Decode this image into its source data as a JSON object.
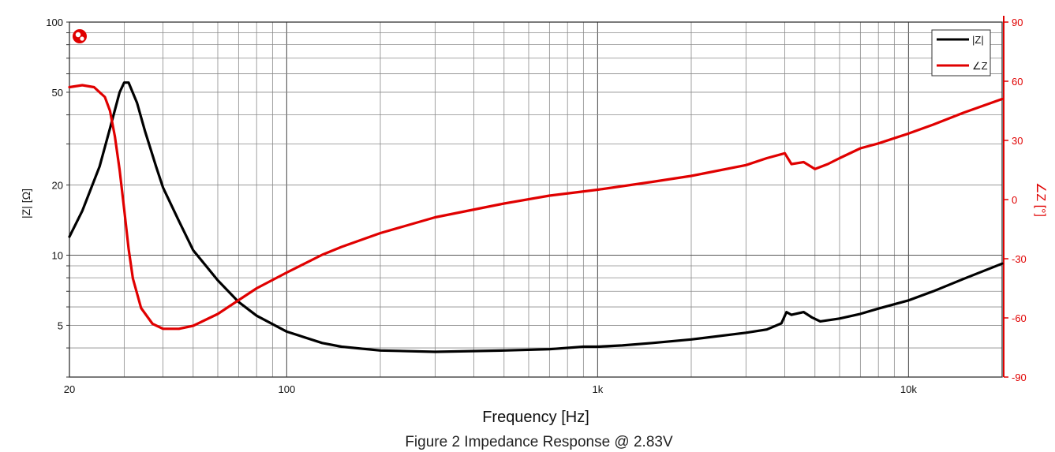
{
  "chart_data": {
    "type": "line",
    "caption": "Figure 2 Impedance Response @ 2.83V",
    "xlabel": "Frequency [Hz]",
    "ylabel_left": "|Z| [Ω]",
    "ylabel_right": "∠Z [°]",
    "x_scale": "log",
    "xlim": [
      20,
      20000
    ],
    "y_left_scale": "log",
    "y_left_lim": [
      3,
      100
    ],
    "y_right_lim": [
      -90,
      90
    ],
    "x_ticks": [
      {
        "value": 20,
        "label": "20"
      },
      {
        "value": 100,
        "label": "100"
      },
      {
        "value": 1000,
        "label": "1k"
      },
      {
        "value": 10000,
        "label": "10k"
      }
    ],
    "y_left_ticks": [
      {
        "value": 5,
        "label": "5"
      },
      {
        "value": 10,
        "label": "10"
      },
      {
        "value": 20,
        "label": "20"
      },
      {
        "value": 50,
        "label": "50"
      },
      {
        "value": 100,
        "label": "100"
      }
    ],
    "y_right_ticks": [
      {
        "value": -90,
        "label": "-90"
      },
      {
        "value": -60,
        "label": "-60"
      },
      {
        "value": -30,
        "label": "-30"
      },
      {
        "value": 0,
        "label": "0"
      },
      {
        "value": 30,
        "label": "30"
      },
      {
        "value": 60,
        "label": "60"
      },
      {
        "value": 90,
        "label": "90"
      }
    ],
    "grid": true,
    "legend": {
      "placement": "top-right"
    },
    "series": [
      {
        "name": "|Z|",
        "axis": "left",
        "color": "#000000",
        "points": [
          [
            20,
            12
          ],
          [
            22,
            15.5
          ],
          [
            25,
            24
          ],
          [
            27,
            35
          ],
          [
            29,
            50
          ],
          [
            30,
            55
          ],
          [
            31,
            55
          ],
          [
            33,
            45
          ],
          [
            35,
            34
          ],
          [
            38,
            24
          ],
          [
            40,
            19.5
          ],
          [
            45,
            14
          ],
          [
            50,
            10.5
          ],
          [
            60,
            7.8
          ],
          [
            70,
            6.3
          ],
          [
            80,
            5.5
          ],
          [
            100,
            4.7
          ],
          [
            130,
            4.2
          ],
          [
            150,
            4.05
          ],
          [
            200,
            3.9
          ],
          [
            300,
            3.85
          ],
          [
            500,
            3.9
          ],
          [
            700,
            3.95
          ],
          [
            900,
            4.05
          ],
          [
            1000,
            4.05
          ],
          [
            1200,
            4.1
          ],
          [
            1500,
            4.2
          ],
          [
            2000,
            4.35
          ],
          [
            3000,
            4.65
          ],
          [
            3500,
            4.8
          ],
          [
            3900,
            5.1
          ],
          [
            4050,
            5.7
          ],
          [
            4200,
            5.55
          ],
          [
            4600,
            5.7
          ],
          [
            4900,
            5.4
          ],
          [
            5200,
            5.2
          ],
          [
            6000,
            5.35
          ],
          [
            7000,
            5.6
          ],
          [
            8000,
            5.9
          ],
          [
            10000,
            6.4
          ],
          [
            12000,
            7.0
          ],
          [
            15000,
            7.9
          ],
          [
            20000,
            9.2
          ]
        ]
      },
      {
        "name": "∠Z",
        "axis": "right",
        "color": "#e00000",
        "points": [
          [
            20,
            57
          ],
          [
            22,
            58
          ],
          [
            24,
            57
          ],
          [
            26,
            52
          ],
          [
            27,
            45
          ],
          [
            28,
            32
          ],
          [
            29,
            15
          ],
          [
            30,
            -5
          ],
          [
            31,
            -25
          ],
          [
            32,
            -40
          ],
          [
            34,
            -55
          ],
          [
            37,
            -63
          ],
          [
            40,
            -65.5
          ],
          [
            45,
            -65.5
          ],
          [
            50,
            -64
          ],
          [
            60,
            -58
          ],
          [
            70,
            -51
          ],
          [
            80,
            -45
          ],
          [
            100,
            -37
          ],
          [
            130,
            -28
          ],
          [
            150,
            -24
          ],
          [
            200,
            -17
          ],
          [
            300,
            -9
          ],
          [
            500,
            -2
          ],
          [
            700,
            2
          ],
          [
            1000,
            5
          ],
          [
            1500,
            9
          ],
          [
            2000,
            12
          ],
          [
            3000,
            17.5
          ],
          [
            3500,
            21
          ],
          [
            4000,
            23.5
          ],
          [
            4200,
            18
          ],
          [
            4600,
            19
          ],
          [
            5000,
            15.5
          ],
          [
            5500,
            18
          ],
          [
            6000,
            21
          ],
          [
            7000,
            26
          ],
          [
            8000,
            28.5
          ],
          [
            10000,
            33.5
          ],
          [
            12000,
            38
          ],
          [
            15000,
            44
          ],
          [
            20000,
            51
          ]
        ]
      }
    ]
  }
}
